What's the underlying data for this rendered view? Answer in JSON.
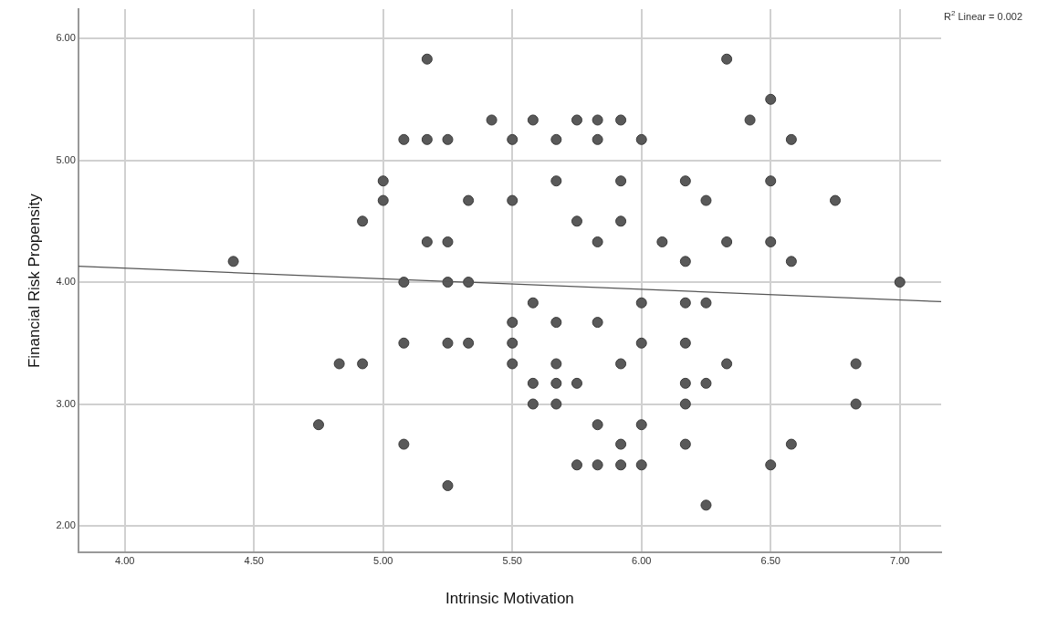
{
  "chart_data": {
    "type": "scatter",
    "xlabel": "Intrinsic Motivation",
    "ylabel": "Financial Risk Propensity",
    "annotations": [
      "R$^{2}$ Linear = 0.002"
    ],
    "xlim": [
      3.82,
      7.16
    ],
    "ylim": [
      1.78,
      6.24
    ],
    "xticks": [
      {
        "value": 4,
        "label": "4.00"
      },
      {
        "value": 4.5,
        "label": "4.50"
      },
      {
        "value": 5,
        "label": "5.00"
      },
      {
        "value": 5.5,
        "label": "5.50"
      },
      {
        "value": 6,
        "label": "6.00"
      },
      {
        "value": 6.5,
        "label": "6.50"
      },
      {
        "value": 7,
        "label": "7.00"
      }
    ],
    "yticks": [
      {
        "value": 2,
        "label": "2.00"
      },
      {
        "value": 3,
        "label": "3.00"
      },
      {
        "value": 4,
        "label": "4.00"
      },
      {
        "value": 5,
        "label": "5.00"
      },
      {
        "value": 6,
        "label": "6.00"
      }
    ],
    "grid": true,
    "legend": false,
    "marker": "circle",
    "series": [
      {
        "type": "scatter",
        "color": "#595959",
        "x": [
          5.17,
          6.33,
          6.5,
          5.42,
          5.58,
          5.75,
          5.83,
          5.92,
          6.42,
          5.08,
          5.17,
          5.25,
          5.5,
          5.67,
          5.83,
          6.0,
          6.58,
          5.0,
          5.67,
          5.92,
          6.17,
          6.5,
          5.0,
          5.33,
          5.5,
          6.25,
          6.75,
          4.92,
          5.75,
          5.92,
          5.17,
          5.25,
          5.83,
          6.08,
          6.33,
          6.5,
          4.42,
          6.17,
          6.58,
          5.08,
          5.25,
          5.33,
          7.0,
          5.58,
          6.0,
          6.17,
          6.25,
          5.5,
          5.67,
          5.83,
          5.08,
          5.25,
          5.33,
          5.5,
          6.0,
          6.17,
          4.83,
          4.92,
          5.5,
          5.67,
          5.92,
          6.33,
          6.83,
          5.58,
          5.67,
          5.75,
          6.17,
          6.25,
          5.58,
          5.67,
          6.17,
          6.83,
          4.75,
          5.83,
          6.0,
          5.08,
          5.92,
          6.17,
          6.58,
          5.75,
          5.83,
          5.92,
          6.0,
          6.5,
          5.25,
          6.25
        ],
        "values": [
          5.83,
          5.83,
          5.5,
          5.33,
          5.33,
          5.33,
          5.33,
          5.33,
          5.33,
          5.17,
          5.17,
          5.17,
          5.17,
          5.17,
          5.17,
          5.17,
          5.17,
          4.83,
          4.83,
          4.83,
          4.83,
          4.83,
          4.67,
          4.67,
          4.67,
          4.67,
          4.67,
          4.5,
          4.5,
          4.5,
          4.33,
          4.33,
          4.33,
          4.33,
          4.33,
          4.33,
          4.17,
          4.17,
          4.17,
          4.0,
          4.0,
          4.0,
          4.0,
          3.83,
          3.83,
          3.83,
          3.83,
          3.67,
          3.67,
          3.67,
          3.5,
          3.5,
          3.5,
          3.5,
          3.5,
          3.5,
          3.33,
          3.33,
          3.33,
          3.33,
          3.33,
          3.33,
          3.33,
          3.17,
          3.17,
          3.17,
          3.17,
          3.17,
          3.0,
          3.0,
          3.0,
          3.0,
          2.83,
          2.83,
          2.83,
          2.67,
          2.67,
          2.67,
          2.67,
          2.5,
          2.5,
          2.5,
          2.5,
          2.5,
          2.33,
          2.17
        ]
      },
      {
        "type": "line",
        "color": "#555555",
        "marker": "none",
        "x": [
          3.82,
          7.16
        ],
        "values": [
          4.13,
          3.84
        ]
      }
    ]
  }
}
